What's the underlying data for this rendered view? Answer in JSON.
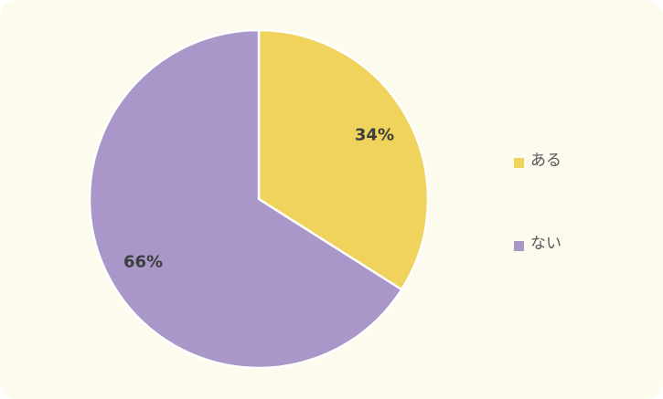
{
  "chart_data": {
    "type": "pie",
    "categories": [
      "ある",
      "ない"
    ],
    "values": [
      34,
      66
    ],
    "value_labels": [
      "34%",
      "66%"
    ],
    "colors": [
      "#efd35c",
      "#a897c8"
    ],
    "legend": "right"
  }
}
